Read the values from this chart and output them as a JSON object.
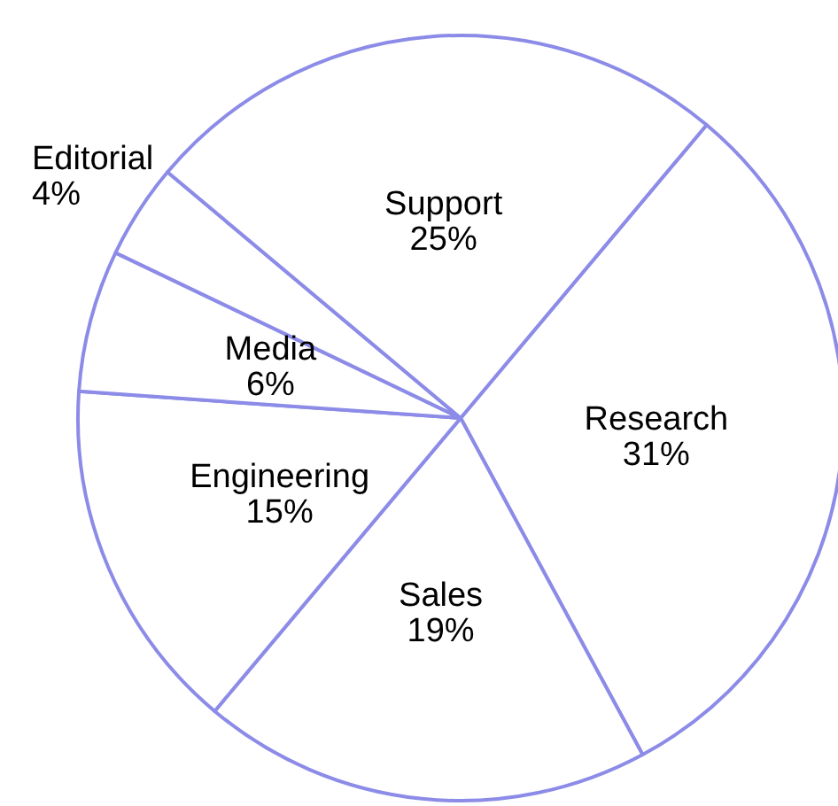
{
  "chart_data": {
    "type": "pie",
    "categories": [
      "Research",
      "Sales",
      "Engineering",
      "Media",
      "Editorial",
      "Support"
    ],
    "values": [
      31,
      19,
      15,
      6,
      4,
      25
    ],
    "colors": [
      "#ffffff",
      "#ffffff",
      "#ffffff",
      "#ffffff",
      "#ffffff",
      "#ffffff"
    ],
    "value_labels": [
      "31%",
      "19%",
      "15%",
      "6%",
      "4%",
      "25%"
    ],
    "legend": false
  }
}
